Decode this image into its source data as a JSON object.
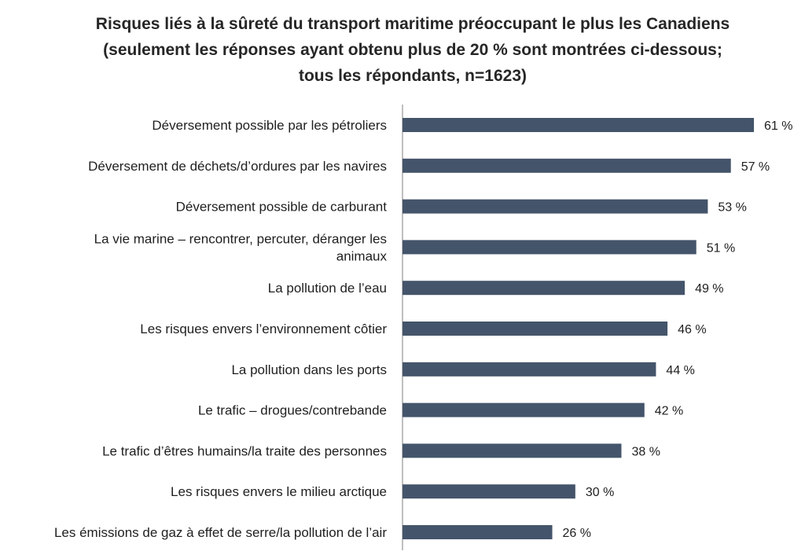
{
  "chart_data": {
    "type": "bar",
    "orientation": "horizontal",
    "title": "Risques liés à la sûreté du transport maritime préoccupant le plus les Canadiens (seulement les réponses ayant obtenu plus de 20 % sont montrées ci-dessous; tous les répondants, n=1623)",
    "categories": [
      "Déversement possible par les pétroliers",
      "Déversement de déchets/d’ordures par les navires",
      "Déversement possible de carburant",
      "La vie marine – rencontrer, percuter, déranger les animaux",
      "La pollution de l’eau",
      "Les risques envers l’environnement côtier",
      "La pollution dans les ports",
      "Le trafic – drogues/contrebande",
      "Le trafic d’êtres humains/la traite des personnes",
      "Les risques envers le milieu arctique",
      "Les émissions de gaz à effet de serre/la pollution de l’air"
    ],
    "values": [
      61,
      57,
      53,
      51,
      49,
      46,
      44,
      42,
      38,
      30,
      26
    ],
    "value_labels": [
      "61 %",
      "57 %",
      "53 %",
      "51 %",
      "49 %",
      "46 %",
      "44 %",
      "42 %",
      "38 %",
      "30 %",
      "26 %"
    ],
    "xlim": [
      0,
      61
    ],
    "bar_color": "#44546a",
    "axis_color": "#bfbfbf",
    "grid": false,
    "legend": "none"
  }
}
